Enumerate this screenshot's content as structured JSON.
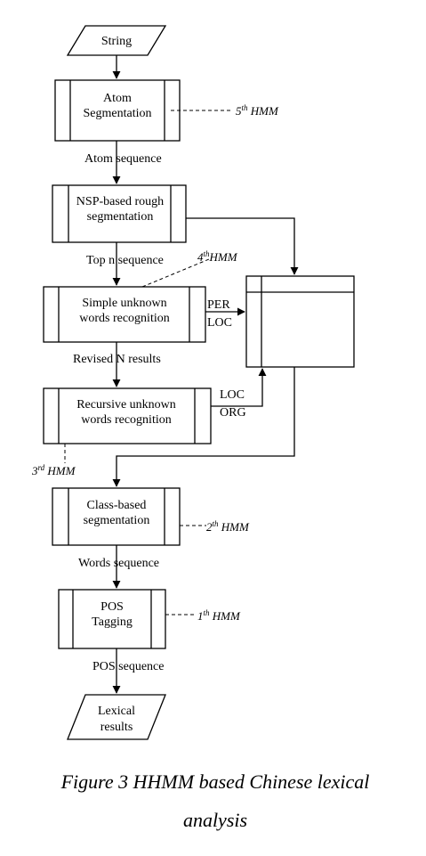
{
  "nodes": {
    "string": "String",
    "atom_1": "Atom",
    "atom_2": "Segmentation",
    "nsp_1": "NSP-based rough",
    "nsp_2": "segmentation",
    "simple_1": "Simple unknown",
    "simple_2": "words recognition",
    "recursive_1": "Recursive unknown",
    "recursive_2": "words recognition",
    "class_1": "Class-based",
    "class_2": "segmentation",
    "pos_1": "POS",
    "pos_2": "Tagging",
    "lexical_1": "Lexical",
    "lexical_2": "results"
  },
  "edges": {
    "atom_sequence": "Atom sequence",
    "top_n_sequence": "Top n sequence",
    "revised_n_results": "Revised N results",
    "words_sequence": "Words sequence",
    "pos_sequence": "POS sequence",
    "per": "PER",
    "loc_1": "LOC",
    "loc_2": "LOC",
    "org": "ORG"
  },
  "hmm_labels": {
    "h5_num": "5",
    "h5_sup": "th",
    "h5_text": " HMM",
    "h4_num": "4",
    "h4_sup": "th",
    "h4_text": "HMM",
    "h3_num": "3",
    "h3_sup": "rd",
    "h3_text": " HMM",
    "h2_num": "2",
    "h2_sup": "th",
    "h2_text": " HMM",
    "h1_num": "1",
    "h1_sup": "th",
    "h1_text": " HMM"
  },
  "caption": {
    "line1": "Figure 3 HHMM based Chinese lexical",
    "line2": "analysis"
  }
}
